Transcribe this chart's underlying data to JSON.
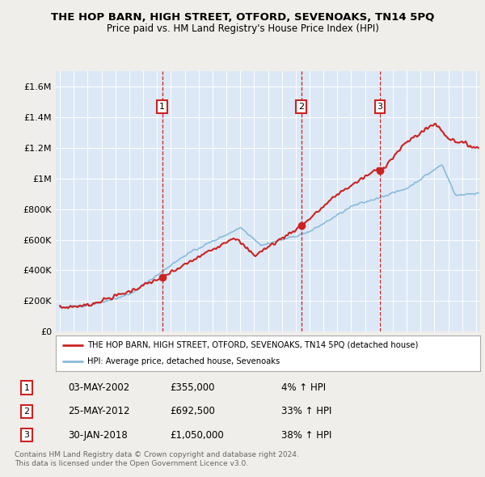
{
  "title": "THE HOP BARN, HIGH STREET, OTFORD, SEVENOAKS, TN14 5PQ",
  "subtitle": "Price paid vs. HM Land Registry's House Price Index (HPI)",
  "property_label": "THE HOP BARN, HIGH STREET, OTFORD, SEVENOAKS, TN14 5PQ (detached house)",
  "hpi_label": "HPI: Average price, detached house, Sevenoaks",
  "transactions": [
    {
      "num": 1,
      "date": "03-MAY-2002",
      "price": 355000,
      "hpi_change": "4% ↑ HPI",
      "year": 2002.37
    },
    {
      "num": 2,
      "date": "25-MAY-2012",
      "price": 692500,
      "hpi_change": "33% ↑ HPI",
      "year": 2012.4
    },
    {
      "num": 3,
      "date": "30-JAN-2018",
      "price": 1050000,
      "hpi_change": "38% ↑ HPI",
      "year": 2018.08
    }
  ],
  "footer": "Contains HM Land Registry data © Crown copyright and database right 2024.\nThis data is licensed under the Open Government Licence v3.0.",
  "fig_bg": "#f0eeeb",
  "plot_bg": "#dce8f5",
  "red_color": "#cc2222",
  "blue_color": "#88bbdd",
  "grid_color": "#ffffff",
  "dashed_color": "#cc2222",
  "ylim": [
    0,
    1700000
  ],
  "yticks": [
    0,
    200000,
    400000,
    600000,
    800000,
    1000000,
    1200000,
    1400000,
    1600000
  ],
  "ytick_labels": [
    "£0",
    "£200K",
    "£400K",
    "£600K",
    "£800K",
    "£1M",
    "£1.2M",
    "£1.4M",
    "£1.6M"
  ],
  "xmin": 1994.7,
  "xmax": 2025.3
}
